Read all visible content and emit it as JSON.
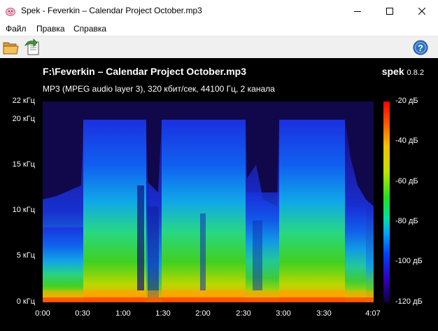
{
  "window": {
    "title": "Spek - Feverkin – Calendar Project October.mp3"
  },
  "menu": {
    "items": [
      "Файл",
      "Правка",
      "Справка"
    ]
  },
  "toolbar": {
    "open_icon": "folder-open-icon",
    "save_icon": "save-export-icon",
    "help_icon": "help-icon"
  },
  "plot": {
    "file_title": "F:\\Feverkin – Calendar Project October.mp3",
    "audio_info": "MP3 (MPEG audio layer 3), 320 кбит/сек, 44100 Гц, 2 канала",
    "brand_name": "spek",
    "brand_version": "0.8.2",
    "freq_labels": [
      "22 кГц",
      "20 кГц",
      "15 кГц",
      "10 кГц",
      "5 кГц",
      "0 кГц"
    ],
    "time_labels": [
      "0:00",
      "0:30",
      "1:00",
      "1:30",
      "2:00",
      "2:30",
      "3:00",
      "3:30",
      "4:07"
    ],
    "db_labels": [
      "-20 дБ",
      "-40 дБ",
      "-60 дБ",
      "-80 дБ",
      "-100 дБ",
      "-120 дБ"
    ]
  },
  "chart_data": {
    "type": "heatmap",
    "x_axis": {
      "unit": "time",
      "range": [
        "0:00",
        "4:07"
      ]
    },
    "y_axis": {
      "unit": "кГц",
      "range": [
        0,
        22
      ]
    },
    "colorscale": {
      "unit": "дБ",
      "range": [
        -120,
        -20
      ]
    },
    "colors": [
      "#000000",
      "#2a0080",
      "#0000ff",
      "#00a0ff",
      "#00e0c0",
      "#20e020",
      "#e0e000",
      "#ff8000",
      "#ff0000",
      "#ffffff"
    ]
  }
}
